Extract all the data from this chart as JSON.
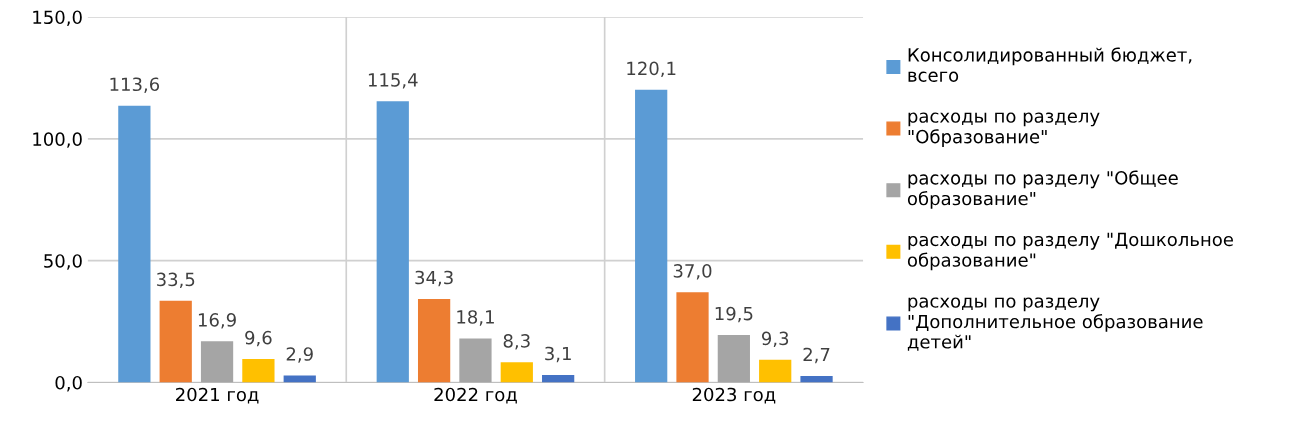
{
  "chart_data": {
    "type": "bar",
    "categories": [
      "2021 год",
      "2022 год",
      "2023 год"
    ],
    "series": [
      {
        "name": "Консолидированный бюджет, всего",
        "color": "#5b9bd5",
        "values": [
          113.6,
          115.4,
          120.1
        ],
        "value_labels": [
          "113,6",
          "115,4",
          "120,1"
        ]
      },
      {
        "name": "расходы по разделу \"Образование\"",
        "color": "#ed7d31",
        "values": [
          33.5,
          34.3,
          37.0
        ],
        "value_labels": [
          "33,5",
          "34,3",
          "37,0"
        ]
      },
      {
        "name": "расходы по разделу \"Общее образование\"",
        "color": "#a5a5a5",
        "values": [
          16.9,
          18.1,
          19.5
        ],
        "value_labels": [
          "16,9",
          "18,1",
          "19,5"
        ]
      },
      {
        "name": "расходы по разделу \"Дошкольное образование\"",
        "color": "#ffc000",
        "values": [
          9.6,
          8.3,
          9.3
        ],
        "value_labels": [
          "9,6",
          "8,3",
          "9,3"
        ]
      },
      {
        "name": "расходы по разделу \"Дополнительное образование детей\"",
        "color": "#4472c4",
        "values": [
          2.9,
          3.1,
          2.7
        ],
        "value_labels": [
          "2,9",
          "3,1",
          "2,7"
        ]
      }
    ],
    "ylim": [
      0,
      150
    ],
    "yticks": [
      {
        "value": 0,
        "label": "0,0"
      },
      {
        "value": 50,
        "label": "50,0"
      },
      {
        "value": 100,
        "label": "100,0"
      },
      {
        "value": 150,
        "label": "150,0"
      }
    ],
    "grid": true,
    "legend": "right"
  }
}
